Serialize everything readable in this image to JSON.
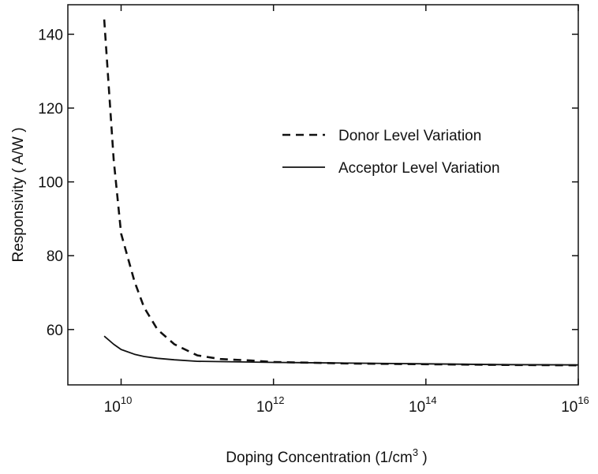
{
  "chart_data": {
    "type": "line",
    "xlabel": "Doping Concentration (1/cm",
    "xlabel_sup": "3",
    "xlabel_end": " )",
    "ylabel": "Responsivity ( A/W )",
    "xscale": "log",
    "xlim": [
      2000000000.0,
      1e+16
    ],
    "ylim": [
      45,
      148
    ],
    "x_ticks": [
      {
        "value": 10000000000.0,
        "base": "10",
        "exp": "10"
      },
      {
        "value": 1000000000000.0,
        "base": "10",
        "exp": "12"
      },
      {
        "value": 100000000000000.0,
        "base": "10",
        "exp": "14"
      },
      {
        "value": 1e+16,
        "base": "10",
        "exp": "16"
      }
    ],
    "y_ticks": [
      60,
      80,
      100,
      120,
      140
    ],
    "grid": false,
    "legend_position": "upper-right",
    "series": [
      {
        "name": "Donor Level Variation",
        "style": "dashed",
        "x": [
          6000000000.0,
          8000000000.0,
          10000000000.0,
          15000000000.0,
          20000000000.0,
          30000000000.0,
          50000000000.0,
          100000000000.0,
          200000000000.0,
          500000000000.0,
          1000000000000.0,
          3000000000000.0,
          10000000000000.0,
          100000000000000.0,
          1000000000000000.0,
          1e+16
        ],
        "y": [
          144,
          106,
          86,
          73,
          66,
          60,
          56,
          53,
          52,
          51.6,
          51.2,
          51,
          50.8,
          50.6,
          50.4,
          50.3
        ]
      },
      {
        "name": "Acceptor Level Variation",
        "style": "solid",
        "x": [
          6000000000.0,
          8000000000.0,
          10000000000.0,
          15000000000.0,
          20000000000.0,
          30000000000.0,
          50000000000.0,
          100000000000.0,
          1000000000000.0,
          10000000000000.0,
          100000000000000.0,
          1000000000000000.0,
          1e+16
        ],
        "y": [
          58.2,
          56,
          54.6,
          53.3,
          52.7,
          52.2,
          51.8,
          51.4,
          51.1,
          50.9,
          50.7,
          50.5,
          50.4
        ]
      }
    ]
  }
}
